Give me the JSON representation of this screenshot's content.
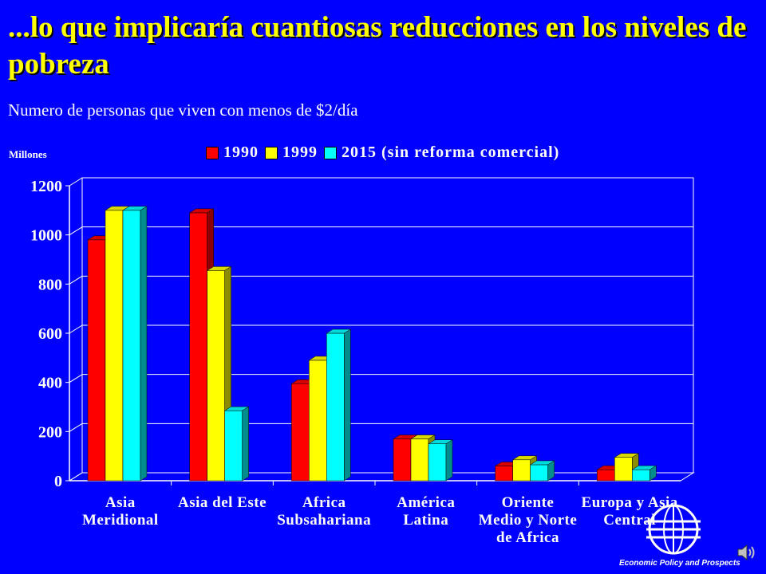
{
  "slide": {
    "title": "...lo que implicaría cuantiosas reducciones en los niveles de pobreza",
    "subtitle": "Numero de personas que viven con menos de $2/día",
    "footer": "Economic Policy and Prospects",
    "logo_icon": "world-bank-globe-icon",
    "sound_icon": "speaker-icon"
  },
  "chart_data": {
    "type": "bar",
    "title": "",
    "xlabel": "",
    "ylabel": "Millones",
    "ylim": [
      0,
      1200
    ],
    "yticks": [
      0,
      200,
      400,
      600,
      800,
      1000,
      1200
    ],
    "grid": true,
    "legend_position": "top",
    "categories": [
      [
        "Asia",
        "Meridional"
      ],
      [
        "Asia del Este"
      ],
      [
        "Africa",
        "Subsahariana"
      ],
      [
        "América",
        "Latina"
      ],
      [
        "Oriente",
        "Medio y Norte",
        "de Africa"
      ],
      [
        "Europa y Asia",
        "Central"
      ]
    ],
    "series": [
      {
        "name": "1990",
        "color": "#FF0000",
        "values": [
          980,
          1090,
          395,
          170,
          60,
          45
        ]
      },
      {
        "name": "1999",
        "color": "#FFFF00",
        "values": [
          1100,
          855,
          490,
          170,
          85,
          95
        ]
      },
      {
        "name": "2015 (sin reforma comercial)",
        "color": "#00FFFF",
        "values": [
          1100,
          285,
          600,
          150,
          65,
          45
        ]
      }
    ]
  }
}
